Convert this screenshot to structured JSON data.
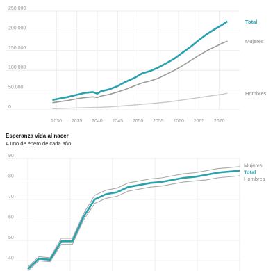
{
  "colors": {
    "total": "#2aa1ad",
    "mujeres": "#9a9a9a",
    "hombres": "#c9c9c9",
    "grid": "#ececec",
    "tick": "#9a9a9a"
  },
  "chart_data": [
    {
      "type": "line",
      "title": "",
      "ylim": [
        0,
        250000
      ],
      "yticks": [
        "0",
        "50.000",
        "100.000",
        "150.000",
        "200.000",
        "250.000"
      ],
      "yticks_values": [
        0,
        50000,
        100000,
        150000,
        200000,
        250000
      ],
      "x_ticks": [
        "2030",
        "2035",
        "2040",
        "2045",
        "2050",
        "2055",
        "2060",
        "2065",
        "2070"
      ],
      "x_ticks_values": [
        2030,
        2035,
        2040,
        2045,
        2050,
        2055,
        2060,
        2065,
        2070
      ],
      "x": [
        2029,
        2031,
        2033,
        2035,
        2037,
        2039,
        2040,
        2041,
        2043,
        2045,
        2047,
        2049,
        2051,
        2053,
        2055,
        2057,
        2059,
        2061,
        2063,
        2065,
        2067,
        2069,
        2071,
        2072
      ],
      "series": [
        {
          "name": "Total",
          "values": [
            25000,
            29000,
            33000,
            38000,
            43000,
            45000,
            41000,
            47000,
            52000,
            60000,
            71000,
            80000,
            92000,
            98000,
            107000,
            118000,
            130000,
            145000,
            160000,
            177000,
            192000,
            205000,
            217000,
            224000
          ]
        },
        {
          "name": "Mujeres",
          "values": [
            18000,
            21000,
            24000,
            28000,
            31000,
            33000,
            31000,
            35000,
            39000,
            45000,
            52000,
            60000,
            68000,
            73000,
            80000,
            90000,
            100000,
            112000,
            125000,
            138000,
            150000,
            160000,
            170000,
            174000
          ]
        },
        {
          "name": "Hombres",
          "values": [
            3000,
            3500,
            4000,
            4800,
            5500,
            6000,
            6000,
            6500,
            7500,
            9000,
            10500,
            12000,
            14000,
            15500,
            17500,
            19500,
            22000,
            25000,
            28000,
            31000,
            34000,
            37000,
            40000,
            42000
          ]
        }
      ]
    },
    {
      "type": "line",
      "title": "Esperanza vida al nacer",
      "subtitle": "A uno de enero de cada año",
      "ylim": [
        35,
        90
      ],
      "yticks": [
        "40",
        "50",
        "60",
        "70",
        "80",
        "90"
      ],
      "yticks_values": [
        40,
        50,
        60,
        70,
        80,
        90
      ],
      "x": [
        1,
        2,
        3,
        4,
        5,
        6,
        7,
        8,
        9,
        10,
        11,
        12,
        13,
        14,
        15,
        16,
        17,
        18,
        19,
        20
      ],
      "series": [
        {
          "name": "Mujeres",
          "values": [
            37,
            42,
            41.5,
            51,
            51,
            63,
            72,
            74.5,
            75.5,
            78,
            79,
            80,
            80.5,
            81.5,
            82.5,
            83,
            84,
            85,
            85.5,
            86
          ]
        },
        {
          "name": "Total",
          "values": [
            36,
            41,
            40.5,
            49.5,
            49.5,
            61.5,
            70,
            72.5,
            73.5,
            76,
            77,
            78,
            78.5,
            79.5,
            80.5,
            81,
            82,
            83,
            83.5,
            84
          ]
        },
        {
          "name": "Hombres",
          "values": [
            35,
            40,
            39.5,
            48,
            48,
            60,
            68,
            70.5,
            71.5,
            74,
            75,
            76,
            76.5,
            77.5,
            78.5,
            79,
            79.5,
            80.5,
            81,
            81.5
          ]
        }
      ]
    }
  ]
}
